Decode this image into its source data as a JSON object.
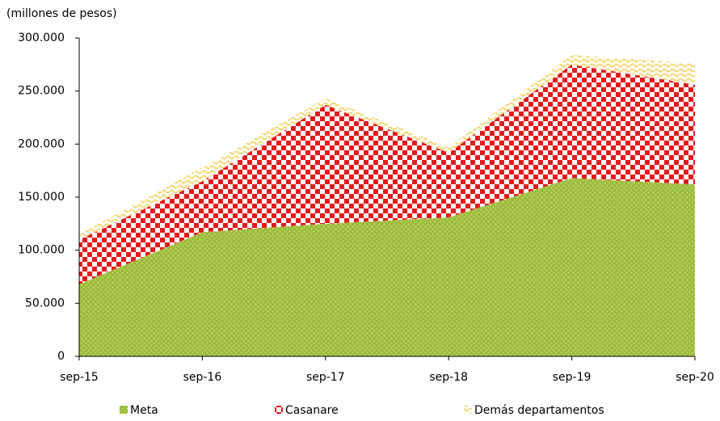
{
  "chart_data": {
    "type": "stacked-area",
    "y_label": "(millones de pesos)",
    "categories": [
      "sep-15",
      "sep-16",
      "sep-17",
      "sep-18",
      "sep-19",
      "sep-20"
    ],
    "series": [
      {
        "name": "Meta",
        "color": "#9bbb3b",
        "values": [
          68000,
          117000,
          125000,
          131000,
          168000,
          162000
        ]
      },
      {
        "name": "Casanare",
        "color": "#e31b1b",
        "values": [
          42000,
          48000,
          112000,
          61000,
          107000,
          94000
        ]
      },
      {
        "name": "Demás departamentos",
        "color": "#f5d76e",
        "values": [
          5000,
          13000,
          6000,
          5000,
          9000,
          20000
        ]
      }
    ],
    "ylim": [
      0,
      300000
    ],
    "yticks": [
      0,
      {
        "value": 50000,
        "label": "50.000"
      },
      {
        "value": 100000,
        "label": "100.000"
      },
      {
        "value": 150000,
        "label": "150.000"
      },
      {
        "value": 200000,
        "label": "200.000"
      },
      {
        "value": 250000,
        "label": "250.000"
      },
      {
        "value": 300000,
        "label": "300.000"
      }
    ],
    "legend": "bottom"
  }
}
